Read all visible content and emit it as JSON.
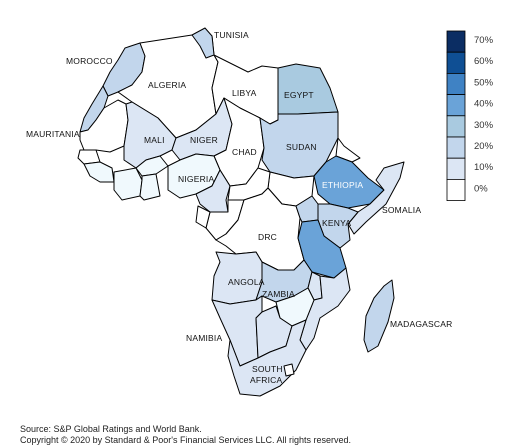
{
  "colors": {
    "0": "#ffffff",
    "10": "#f0f9fd",
    "20": "#dce6f4",
    "30": "#c2d6ec",
    "40": "#a9cae0",
    "50": "#6aa3d8",
    "60": "#3f82c4",
    "70": "#0f4f94",
    "80": "#0b2d63"
  },
  "labels": {
    "tunisia": "TUNISIA",
    "morocco": "MOROCCO",
    "algeria": "ALGERIA",
    "libya": "LIBYA",
    "egypt": "EGYPT",
    "mauritania": "MAURITANIA",
    "mali": "MALI",
    "niger": "NIGER",
    "chad": "CHAD",
    "sudan": "SUDAN",
    "nigeria": "NIGERIA",
    "ethiopia": "ETHIOPIA",
    "somalia": "SOMALIA",
    "kenya": "KENYA",
    "drc": "DRC",
    "angola": "ANGOLA",
    "zambia": "ZAMBIA",
    "madagascar": "MADAGASCAR",
    "namibia": "NAMIBIA",
    "south_africa_1": "SOUTH",
    "south_africa_2": "AFRICA"
  },
  "legend": {
    "ticks": [
      "70%",
      "60%",
      "50%",
      "40%",
      "30%",
      "20%",
      "10%",
      "0%"
    ],
    "colors": [
      "#0b2d63",
      "#0f4f94",
      "#3f82c4",
      "#6aa3d8",
      "#a9cae0",
      "#c2d6ec",
      "#dce6f4",
      "#ffffff"
    ]
  },
  "footer": {
    "source": "Source: S&P Global Ratings and World Bank.",
    "copyright": "Copyright © 2020  by Standard & Poor's Financial Services LLC. All rights reserved."
  }
}
